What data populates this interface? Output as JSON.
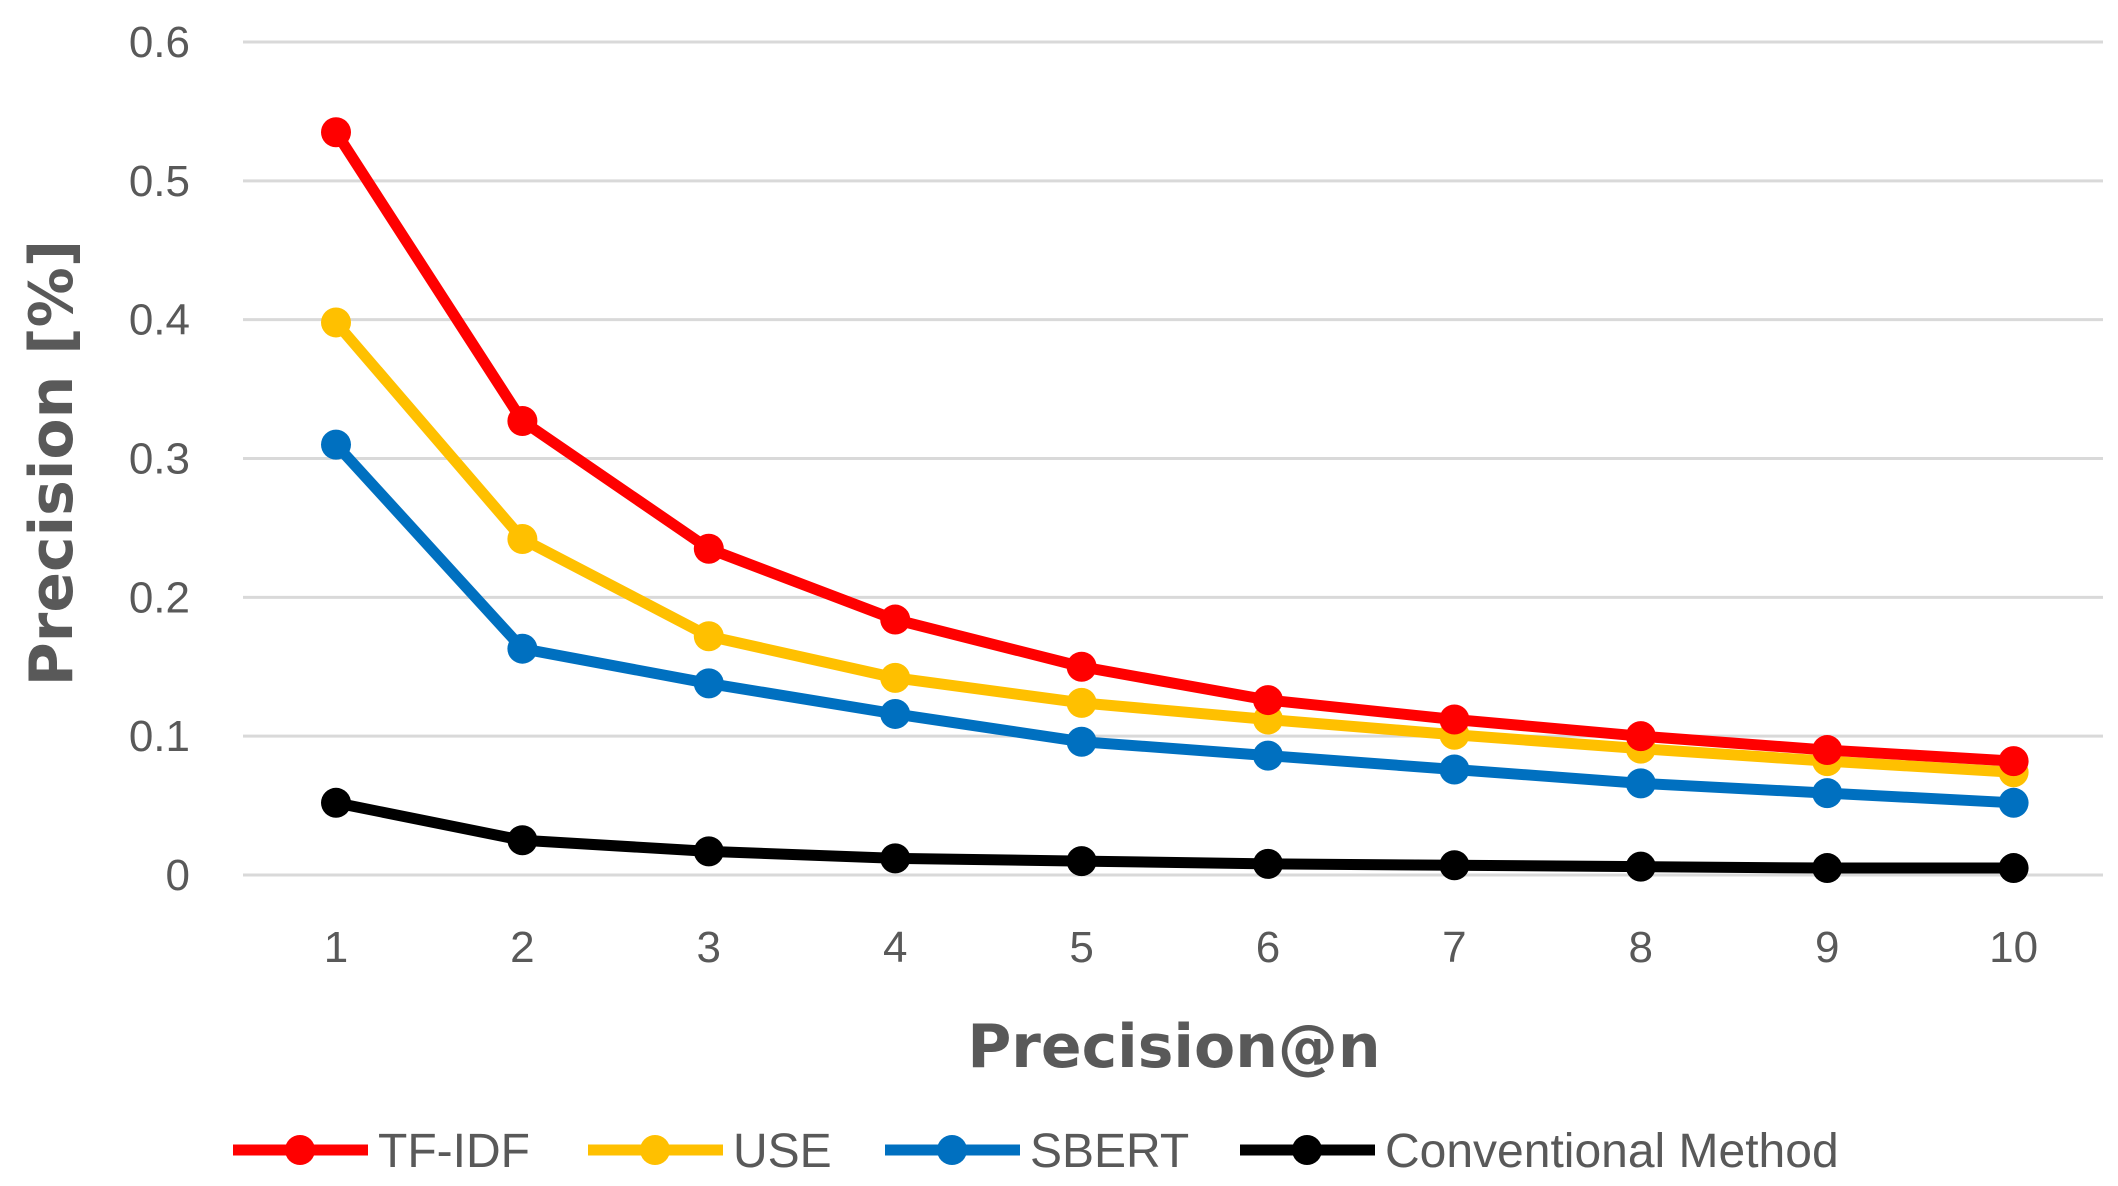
{
  "chart_data": {
    "type": "line",
    "title": "",
    "xlabel": "Precision@n",
    "ylabel": "Precision [%]",
    "categories": [
      "1",
      "2",
      "3",
      "4",
      "5",
      "6",
      "7",
      "8",
      "9",
      "10"
    ],
    "ylim": [
      0,
      0.6
    ],
    "yticks": [
      "0",
      "0.1",
      "0.2",
      "0.3",
      "0.4",
      "0.5",
      "0.6"
    ],
    "grid": true,
    "legend_position": "bottom",
    "series": [
      {
        "name": "TF-IDF",
        "color": "#ff0000",
        "values": [
          0.535,
          0.327,
          0.235,
          0.184,
          0.15,
          0.126,
          0.112,
          0.1,
          0.09,
          0.082
        ]
      },
      {
        "name": "USE",
        "color": "#ffc000",
        "values": [
          0.398,
          0.242,
          0.172,
          0.142,
          0.124,
          0.112,
          0.101,
          0.091,
          0.082,
          0.074
        ]
      },
      {
        "name": "SBERT",
        "color": "#0070c0",
        "values": [
          0.31,
          0.163,
          0.138,
          0.116,
          0.096,
          0.086,
          0.076,
          0.066,
          0.059,
          0.052
        ]
      },
      {
        "name": "Conventional Method",
        "color": "#000000",
        "values": [
          0.052,
          0.025,
          0.017,
          0.012,
          0.01,
          0.008,
          0.007,
          0.006,
          0.005,
          0.005
        ]
      }
    ]
  }
}
